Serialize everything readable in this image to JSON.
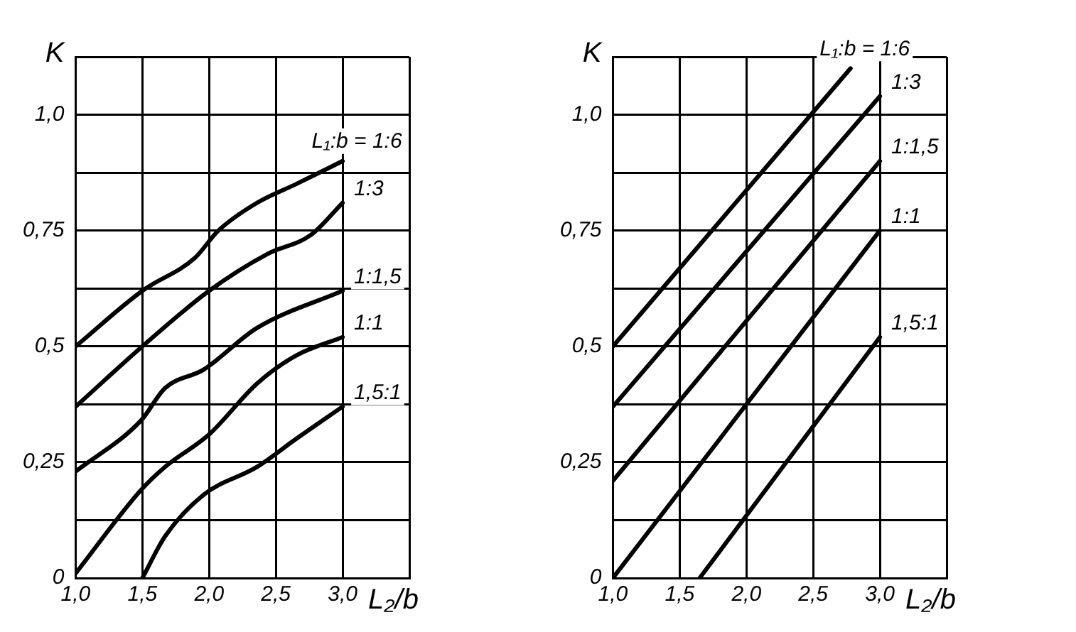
{
  "chart_data": [
    {
      "type": "line",
      "xlabel": "L₂/b",
      "ylabel": "K",
      "xlim": [
        1.0,
        3.5
      ],
      "ylim": [
        0,
        1.125
      ],
      "grid": true,
      "legend": false,
      "xticks": [
        {
          "value": 1.0,
          "label": "1,0"
        },
        {
          "value": 1.5,
          "label": "1,5"
        },
        {
          "value": 2.0,
          "label": "2,0"
        },
        {
          "value": 2.5,
          "label": "2,5"
        },
        {
          "value": 3.0,
          "label": "3,0"
        },
        {
          "value": 3.5,
          "label": null
        }
      ],
      "yticks": [
        0,
        {
          "value": 0.125,
          "label": null
        },
        {
          "value": 0.25,
          "label": "0,25"
        },
        {
          "value": 0.375,
          "label": null
        },
        {
          "value": 0.5,
          "label": "0,5"
        },
        {
          "value": 0.625,
          "label": null
        },
        {
          "value": 0.75,
          "label": "0,75"
        },
        {
          "value": 0.875,
          "label": null
        },
        {
          "value": 1.0,
          "label": "1,0"
        },
        {
          "value": 1.125,
          "label": null
        }
      ],
      "series": [
        {
          "name": "L₁:b = 1:6",
          "color": "#000000",
          "x": [
            1.0,
            1.5,
            1.89,
            2.07,
            2.36,
            2.65,
            3.0
          ],
          "values": [
            0.5,
            0.62,
            0.69,
            0.75,
            0.81,
            0.85,
            0.9
          ]
        },
        {
          "name": "1:3",
          "color": "#000000",
          "x": [
            1.0,
            1.5,
            2.0,
            2.44,
            2.76,
            3.0
          ],
          "values": [
            0.37,
            0.5,
            0.62,
            0.7,
            0.74,
            0.81
          ]
        },
        {
          "name": "1:1,5",
          "color": "#000000",
          "x": [
            1.0,
            1.49,
            1.67,
            1.96,
            2.36,
            3.0
          ],
          "values": [
            0.23,
            0.34,
            0.41,
            0.45,
            0.54,
            0.62
          ]
        },
        {
          "name": "1:1",
          "color": "#000000",
          "x": [
            1.0,
            1.49,
            1.67,
            2.0,
            2.36,
            2.65,
            3.0
          ],
          "values": [
            0.01,
            0.19,
            0.24,
            0.31,
            0.42,
            0.48,
            0.52
          ]
        },
        {
          "name": "1,5:1",
          "color": "#000000",
          "x": [
            1.5,
            1.67,
            1.96,
            2.36,
            2.65,
            3.0
          ],
          "values": [
            0,
            0.09,
            0.18,
            0.24,
            0.3,
            0.37
          ]
        }
      ]
    },
    {
      "type": "line",
      "xlabel": "L₂/b",
      "ylabel": "K",
      "xlim": [
        1.0,
        3.5
      ],
      "ylim": [
        0,
        1.125
      ],
      "grid": true,
      "legend": false,
      "xticks": [
        {
          "value": 1.0,
          "label": "1,0"
        },
        {
          "value": 1.5,
          "label": "1,5"
        },
        {
          "value": 2.0,
          "label": "2,0"
        },
        {
          "value": 2.5,
          "label": "2,5"
        },
        {
          "value": 3.0,
          "label": "3,0"
        },
        {
          "value": 3.5,
          "label": null
        }
      ],
      "yticks": [
        0,
        {
          "value": 0.125,
          "label": null
        },
        {
          "value": 0.25,
          "label": "0,25"
        },
        {
          "value": 0.375,
          "label": null
        },
        {
          "value": 0.5,
          "label": "0,5"
        },
        {
          "value": 0.625,
          "label": null
        },
        {
          "value": 0.75,
          "label": "0,75"
        },
        {
          "value": 0.875,
          "label": null
        },
        {
          "value": 1.0,
          "label": "1,0"
        },
        {
          "value": 1.125,
          "label": null
        }
      ],
      "series": [
        {
          "name": "L₁:b = 1:6",
          "color": "#000000",
          "x": [
            1.0,
            2.78
          ],
          "values": [
            0.5,
            1.1
          ]
        },
        {
          "name": "1:3",
          "color": "#000000",
          "x": [
            1.0,
            3.0
          ],
          "values": [
            0.37,
            1.04
          ]
        },
        {
          "name": "1:1,5",
          "color": "#000000",
          "x": [
            1.0,
            3.0
          ],
          "values": [
            0.21,
            0.9
          ]
        },
        {
          "name": "1:1",
          "color": "#000000",
          "x": [
            1.0,
            3.0
          ],
          "values": [
            0,
            0.75
          ]
        },
        {
          "name": "1,5:1",
          "color": "#000000",
          "x": [
            1.65,
            3.0
          ],
          "values": [
            0,
            0.52
          ]
        }
      ]
    }
  ]
}
